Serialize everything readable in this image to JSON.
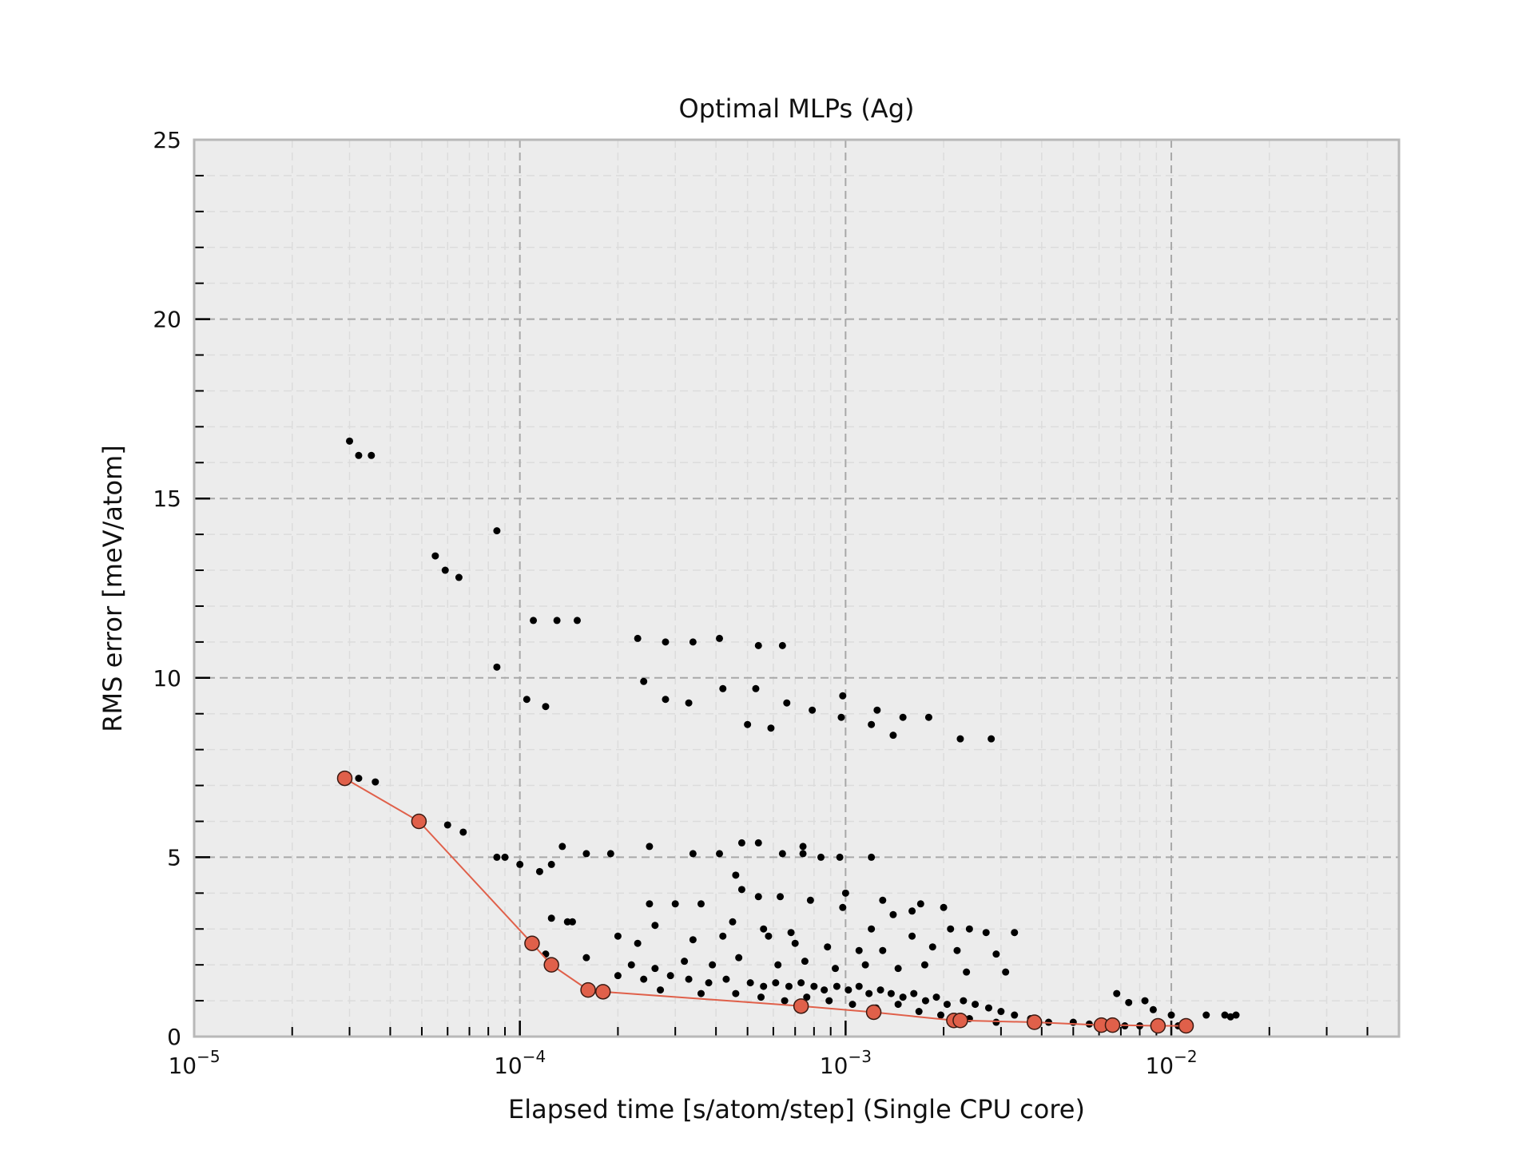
{
  "chart_data": {
    "type": "scatter",
    "title": "Optimal MLPs (Ag)",
    "xlabel": "Elapsed time [s/atom/step] (Single CPU core)",
    "ylabel": "RMS error [meV/atom]",
    "xscale": "log",
    "xlim": [
      1e-05,
      0.05
    ],
    "ylim": [
      0,
      25
    ],
    "x_ticks": [
      {
        "value": 1e-05,
        "base": "10",
        "exp": "−5"
      },
      {
        "value": 0.0001,
        "base": "10",
        "exp": "−4"
      },
      {
        "value": 0.001,
        "base": "10",
        "exp": "−3"
      },
      {
        "value": 0.01,
        "base": "10",
        "exp": "−2"
      }
    ],
    "y_ticks": [
      "0",
      "5",
      "10",
      "15",
      "20",
      "25"
    ],
    "grid": true,
    "colors": {
      "background": "#ececec",
      "frame": "#b8b8b8",
      "grid_major": "#a8a8a8",
      "grid_minor": "#dcdcdc",
      "points": "#000000",
      "pareto": "#e0604a",
      "pareto_edge": "#3a1a12"
    },
    "series": [
      {
        "marker": "dot",
        "points": [
          [
            3e-05,
            16.6
          ],
          [
            3.2e-05,
            16.2
          ],
          [
            3.5e-05,
            16.2
          ],
          [
            8.5e-05,
            14.1
          ],
          [
            5.5e-05,
            13.4
          ],
          [
            5.9e-05,
            13.0
          ],
          [
            6.5e-05,
            12.8
          ],
          [
            0.00011,
            11.6
          ],
          [
            0.00013,
            11.6
          ],
          [
            0.00015,
            11.6
          ],
          [
            0.00023,
            11.1
          ],
          [
            0.00028,
            11.0
          ],
          [
            0.00034,
            11.0
          ],
          [
            0.00041,
            11.1
          ],
          [
            0.00054,
            10.9
          ],
          [
            0.00064,
            10.9
          ],
          [
            8.5e-05,
            10.3
          ],
          [
            0.00024,
            9.9
          ],
          [
            0.00042,
            9.7
          ],
          [
            0.00053,
            9.7
          ],
          [
            0.00098,
            9.5
          ],
          [
            0.000105,
            9.4
          ],
          [
            0.00028,
            9.4
          ],
          [
            0.00033,
            9.3
          ],
          [
            0.00012,
            9.2
          ],
          [
            0.00066,
            9.3
          ],
          [
            0.00079,
            9.1
          ],
          [
            0.00125,
            9.1
          ],
          [
            0.0015,
            8.9
          ],
          [
            0.0018,
            8.9
          ],
          [
            0.00097,
            8.9
          ],
          [
            0.0005,
            8.7
          ],
          [
            0.00059,
            8.6
          ],
          [
            0.0012,
            8.7
          ],
          [
            0.0014,
            8.4
          ],
          [
            0.00225,
            8.3
          ],
          [
            0.0028,
            8.3
          ],
          [
            3.2e-05,
            7.2
          ],
          [
            3.6e-05,
            7.1
          ],
          [
            6e-05,
            5.9
          ],
          [
            6.7e-05,
            5.7
          ],
          [
            8.5e-05,
            5.0
          ],
          [
            9e-05,
            5.0
          ],
          [
            0.0001,
            4.8
          ],
          [
            0.000115,
            4.6
          ],
          [
            0.000125,
            4.8
          ],
          [
            0.000135,
            5.3
          ],
          [
            0.00016,
            5.1
          ],
          [
            0.00019,
            5.1
          ],
          [
            0.00025,
            5.3
          ],
          [
            0.00034,
            5.1
          ],
          [
            0.00041,
            5.1
          ],
          [
            0.00048,
            5.4
          ],
          [
            0.00054,
            5.4
          ],
          [
            0.00064,
            5.1
          ],
          [
            0.00074,
            5.3
          ],
          [
            0.00074,
            5.1
          ],
          [
            0.00084,
            5.0
          ],
          [
            0.00096,
            5.0
          ],
          [
            0.0012,
            5.0
          ],
          [
            0.00046,
            4.5
          ],
          [
            0.00048,
            4.1
          ],
          [
            0.00054,
            3.9
          ],
          [
            0.00063,
            3.9
          ],
          [
            0.001,
            4.0
          ],
          [
            0.00098,
            3.6
          ],
          [
            0.00078,
            3.8
          ],
          [
            0.0013,
            3.8
          ],
          [
            0.00025,
            3.7
          ],
          [
            0.0003,
            3.7
          ],
          [
            0.00036,
            3.7
          ],
          [
            0.0017,
            3.7
          ],
          [
            0.002,
            3.6
          ],
          [
            0.0014,
            3.4
          ],
          [
            0.0016,
            3.5
          ],
          [
            0.0024,
            3.0
          ],
          [
            0.000125,
            3.3
          ],
          [
            0.00014,
            3.2
          ],
          [
            0.000145,
            3.2
          ],
          [
            0.00026,
            3.1
          ],
          [
            0.00045,
            3.2
          ],
          [
            0.00056,
            3.0
          ],
          [
            0.00068,
            2.9
          ],
          [
            0.0012,
            3.0
          ],
          [
            0.0016,
            2.8
          ],
          [
            0.0021,
            3.0
          ],
          [
            0.0027,
            2.9
          ],
          [
            0.0033,
            2.9
          ],
          [
            0.0002,
            2.8
          ],
          [
            0.00023,
            2.6
          ],
          [
            0.00034,
            2.7
          ],
          [
            0.00042,
            2.8
          ],
          [
            0.00058,
            2.8
          ],
          [
            0.0007,
            2.6
          ],
          [
            0.00088,
            2.5
          ],
          [
            0.0011,
            2.4
          ],
          [
            0.0013,
            2.4
          ],
          [
            0.00185,
            2.5
          ],
          [
            0.0022,
            2.4
          ],
          [
            0.0029,
            2.3
          ],
          [
            0.00012,
            2.3
          ],
          [
            0.00016,
            2.2
          ],
          [
            0.00022,
            2.0
          ],
          [
            0.00026,
            1.9
          ],
          [
            0.00032,
            2.1
          ],
          [
            0.00039,
            2.0
          ],
          [
            0.00047,
            2.2
          ],
          [
            0.00062,
            2.0
          ],
          [
            0.00075,
            2.1
          ],
          [
            0.00093,
            1.9
          ],
          [
            0.00115,
            2.0
          ],
          [
            0.00145,
            1.9
          ],
          [
            0.00175,
            2.0
          ],
          [
            0.00235,
            1.8
          ],
          [
            0.0031,
            1.8
          ],
          [
            0.0002,
            1.7
          ],
          [
            0.00024,
            1.6
          ],
          [
            0.00029,
            1.7
          ],
          [
            0.00033,
            1.6
          ],
          [
            0.00038,
            1.5
          ],
          [
            0.00043,
            1.6
          ],
          [
            0.00051,
            1.5
          ],
          [
            0.00056,
            1.4
          ],
          [
            0.00061,
            1.5
          ],
          [
            0.00067,
            1.4
          ],
          [
            0.00073,
            1.5
          ],
          [
            0.0008,
            1.4
          ],
          [
            0.00086,
            1.3
          ],
          [
            0.00094,
            1.4
          ],
          [
            0.00102,
            1.3
          ],
          [
            0.0011,
            1.4
          ],
          [
            0.00118,
            1.2
          ],
          [
            0.00128,
            1.3
          ],
          [
            0.00138,
            1.2
          ],
          [
            0.0015,
            1.1
          ],
          [
            0.00162,
            1.2
          ],
          [
            0.00176,
            1.0
          ],
          [
            0.0019,
            1.1
          ],
          [
            0.00205,
            0.9
          ],
          [
            0.0023,
            1.0
          ],
          [
            0.0025,
            0.9
          ],
          [
            0.00275,
            0.8
          ],
          [
            0.003,
            0.7
          ],
          [
            0.0033,
            0.6
          ],
          [
            0.0037,
            0.5
          ],
          [
            0.0042,
            0.4
          ],
          [
            0.00027,
            1.3
          ],
          [
            0.00036,
            1.2
          ],
          [
            0.00046,
            1.2
          ],
          [
            0.00055,
            1.1
          ],
          [
            0.00065,
            1.0
          ],
          [
            0.00076,
            1.1
          ],
          [
            0.00089,
            1.0
          ],
          [
            0.00105,
            0.9
          ],
          [
            0.00124,
            0.8
          ],
          [
            0.00145,
            0.9
          ],
          [
            0.00168,
            0.7
          ],
          [
            0.00196,
            0.6
          ],
          [
            0.0024,
            0.5
          ],
          [
            0.0029,
            0.4
          ],
          [
            0.005,
            0.4
          ],
          [
            0.0056,
            0.35
          ],
          [
            0.0064,
            0.35
          ],
          [
            0.0072,
            0.3
          ],
          [
            0.0068,
            1.2
          ],
          [
            0.0074,
            0.95
          ],
          [
            0.0083,
            1.0
          ],
          [
            0.0088,
            0.75
          ],
          [
            0.01,
            0.6
          ],
          [
            0.0128,
            0.6
          ],
          [
            0.0146,
            0.6
          ],
          [
            0.0152,
            0.55
          ],
          [
            0.0158,
            0.6
          ],
          [
            0.008,
            0.3
          ],
          [
            0.0105,
            0.3
          ]
        ]
      },
      {
        "marker": "circle",
        "connected": true,
        "points": [
          [
            2.9e-05,
            7.2
          ],
          [
            4.9e-05,
            6.0
          ],
          [
            0.000109,
            2.6
          ],
          [
            0.000125,
            2.0
          ],
          [
            0.000162,
            1.3
          ],
          [
            0.00018,
            1.25
          ],
          [
            0.00073,
            0.85
          ],
          [
            0.00122,
            0.68
          ],
          [
            0.00215,
            0.45
          ],
          [
            0.00225,
            0.45
          ],
          [
            0.0038,
            0.4
          ],
          [
            0.0061,
            0.32
          ],
          [
            0.0066,
            0.32
          ],
          [
            0.0091,
            0.3
          ],
          [
            0.0111,
            0.3
          ]
        ]
      }
    ]
  }
}
